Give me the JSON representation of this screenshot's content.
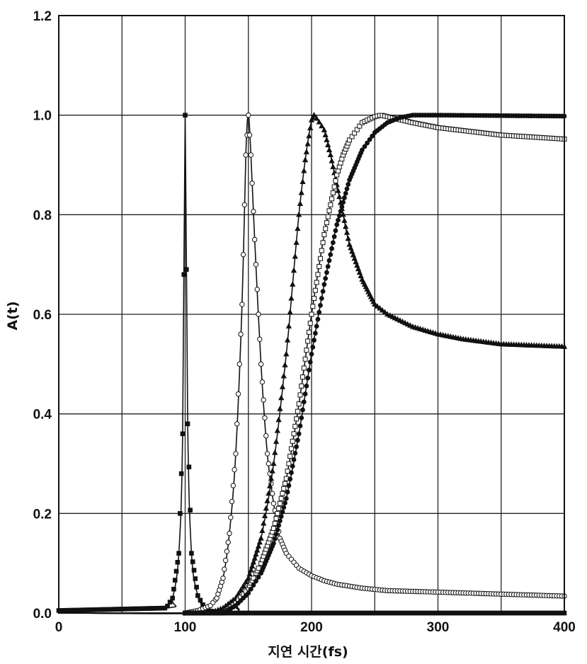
{
  "chart_data": {
    "type": "line",
    "title": "",
    "xlabel": "지연 시간(fs)",
    "ylabel": "A(t)",
    "xlim": [
      0,
      400
    ],
    "ylim": [
      0,
      1.2
    ],
    "grid": true,
    "legend": "none",
    "x_ticks": [
      "0",
      "100",
      "200",
      "300",
      "400"
    ],
    "y_ticks": [
      "0.0",
      "0.2",
      "0.4",
      "0.6",
      "0.8",
      "1.0",
      "1.2"
    ],
    "series": [
      {
        "marker": "filled-square",
        "x": [
          0,
          85,
          90,
          95,
          98,
          100,
          102,
          105,
          110,
          115,
          120,
          130,
          150,
          200,
          300,
          400
        ],
        "y": [
          0.005,
          0.01,
          0.03,
          0.12,
          0.36,
          1.0,
          0.38,
          0.12,
          0.035,
          0.012,
          0.004,
          0.0,
          0.0,
          0.0,
          0.0,
          0.0
        ]
      },
      {
        "marker": "open-circle",
        "x": [
          0,
          100,
          110,
          120,
          125,
          130,
          135,
          140,
          145,
          148,
          150,
          152,
          155,
          160,
          165,
          170,
          175,
          180,
          190,
          200,
          210,
          220,
          240,
          260,
          300,
          350,
          400
        ],
        "y": [
          0.0,
          0.0,
          0.005,
          0.015,
          0.03,
          0.07,
          0.16,
          0.32,
          0.62,
          0.92,
          1.0,
          0.92,
          0.75,
          0.5,
          0.32,
          0.22,
          0.15,
          0.12,
          0.09,
          0.075,
          0.065,
          0.058,
          0.05,
          0.045,
          0.042,
          0.038,
          0.034
        ]
      },
      {
        "marker": "filled-triangle",
        "x": [
          0,
          120,
          130,
          140,
          150,
          160,
          170,
          180,
          185,
          190,
          195,
          200,
          202,
          205,
          210,
          215,
          220,
          225,
          230,
          240,
          250,
          260,
          280,
          300,
          320,
          350,
          380,
          400
        ],
        "y": [
          0.0,
          0.0,
          0.01,
          0.03,
          0.07,
          0.15,
          0.3,
          0.52,
          0.66,
          0.8,
          0.91,
          0.99,
          1.0,
          0.99,
          0.97,
          0.92,
          0.86,
          0.8,
          0.74,
          0.67,
          0.62,
          0.6,
          0.575,
          0.56,
          0.55,
          0.54,
          0.537,
          0.535
        ]
      },
      {
        "marker": "open-square",
        "x": [
          0,
          130,
          140,
          150,
          160,
          170,
          180,
          190,
          200,
          210,
          215,
          220,
          225,
          230,
          240,
          250,
          255,
          260,
          280,
          300,
          350,
          400
        ],
        "y": [
          0.0,
          0.0,
          0.02,
          0.05,
          0.1,
          0.17,
          0.27,
          0.42,
          0.6,
          0.76,
          0.82,
          0.88,
          0.92,
          0.95,
          0.985,
          0.997,
          1.0,
          0.997,
          0.985,
          0.975,
          0.96,
          0.952
        ]
      },
      {
        "marker": "filled-circle",
        "x": [
          0,
          130,
          140,
          150,
          160,
          170,
          180,
          190,
          200,
          210,
          220,
          230,
          240,
          250,
          260,
          270,
          280,
          290,
          300,
          400
        ],
        "y": [
          0.0,
          0.0,
          0.015,
          0.04,
          0.08,
          0.14,
          0.23,
          0.36,
          0.52,
          0.66,
          0.78,
          0.87,
          0.93,
          0.965,
          0.985,
          0.995,
          1.0,
          1.0,
          1.0,
          0.998
        ]
      }
    ]
  }
}
